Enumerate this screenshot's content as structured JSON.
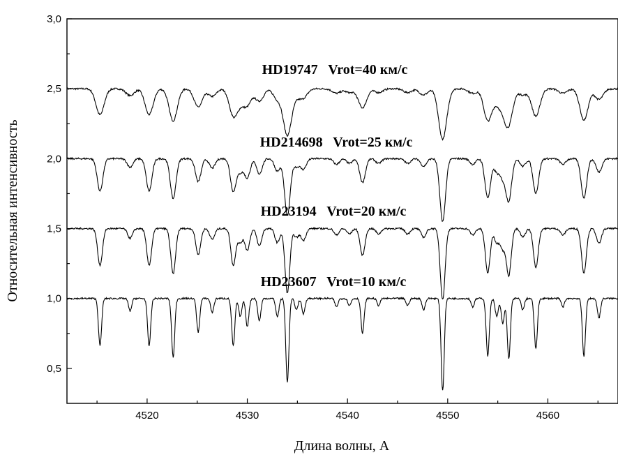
{
  "chart_data": {
    "type": "line",
    "xlabel": "Длина волны, А",
    "ylabel": "Относительная интенсивность",
    "xlim": [
      4512,
      4567
    ],
    "ylim": [
      0.25,
      3.0
    ],
    "xticks": [
      4520,
      4530,
      4540,
      4550,
      4560
    ],
    "yticks": [
      0.5,
      1.0,
      1.5,
      2.0,
      2.5,
      3.0
    ],
    "xtick_labels": [
      "4520",
      "4530",
      "4540",
      "4550",
      "4560"
    ],
    "ytick_labels": [
      "0,5",
      "1,0",
      "1,5",
      "2,0",
      "2,5",
      "3,0"
    ],
    "grid": false,
    "line_color": "#000000",
    "lines": [
      {
        "x": 4515.3,
        "depth": 0.34
      },
      {
        "x": 4518.3,
        "depth": 0.09
      },
      {
        "x": 4520.2,
        "depth": 0.34
      },
      {
        "x": 4522.6,
        "depth": 0.42
      },
      {
        "x": 4525.1,
        "depth": 0.24
      },
      {
        "x": 4526.5,
        "depth": 0.1
      },
      {
        "x": 4528.6,
        "depth": 0.34
      },
      {
        "x": 4529.3,
        "depth": 0.13
      },
      {
        "x": 4530.0,
        "depth": 0.2
      },
      {
        "x": 4531.2,
        "depth": 0.16
      },
      {
        "x": 4533.0,
        "depth": 0.13
      },
      {
        "x": 4534.0,
        "depth": 0.6
      },
      {
        "x": 4534.9,
        "depth": 0.08
      },
      {
        "x": 4535.6,
        "depth": 0.11
      },
      {
        "x": 4538.9,
        "depth": 0.06
      },
      {
        "x": 4540.2,
        "depth": 0.05
      },
      {
        "x": 4541.5,
        "depth": 0.25
      },
      {
        "x": 4543.1,
        "depth": 0.05
      },
      {
        "x": 4546.0,
        "depth": 0.05
      },
      {
        "x": 4547.6,
        "depth": 0.08
      },
      {
        "x": 4549.5,
        "depth": 0.66
      },
      {
        "x": 4552.5,
        "depth": 0.06
      },
      {
        "x": 4554.0,
        "depth": 0.41
      },
      {
        "x": 4554.9,
        "depth": 0.13
      },
      {
        "x": 4555.5,
        "depth": 0.18
      },
      {
        "x": 4556.1,
        "depth": 0.43
      },
      {
        "x": 4557.5,
        "depth": 0.08
      },
      {
        "x": 4558.8,
        "depth": 0.36
      },
      {
        "x": 4561.5,
        "depth": 0.06
      },
      {
        "x": 4563.6,
        "depth": 0.41
      },
      {
        "x": 4565.1,
        "depth": 0.14
      }
    ],
    "series": [
      {
        "name": "HD19747   Vrot=40 км/с",
        "continuum": 2.5,
        "vrot": 40
      },
      {
        "name": "HD214698   Vrot=25 км/с",
        "continuum": 2.0,
        "vrot": 25
      },
      {
        "name": "HD23194   Vrot=20 км/с",
        "continuum": 1.5,
        "vrot": 20
      },
      {
        "name": "HD23607   Vrot=10 км/с",
        "continuum": 1.0,
        "vrot": 10
      }
    ]
  }
}
